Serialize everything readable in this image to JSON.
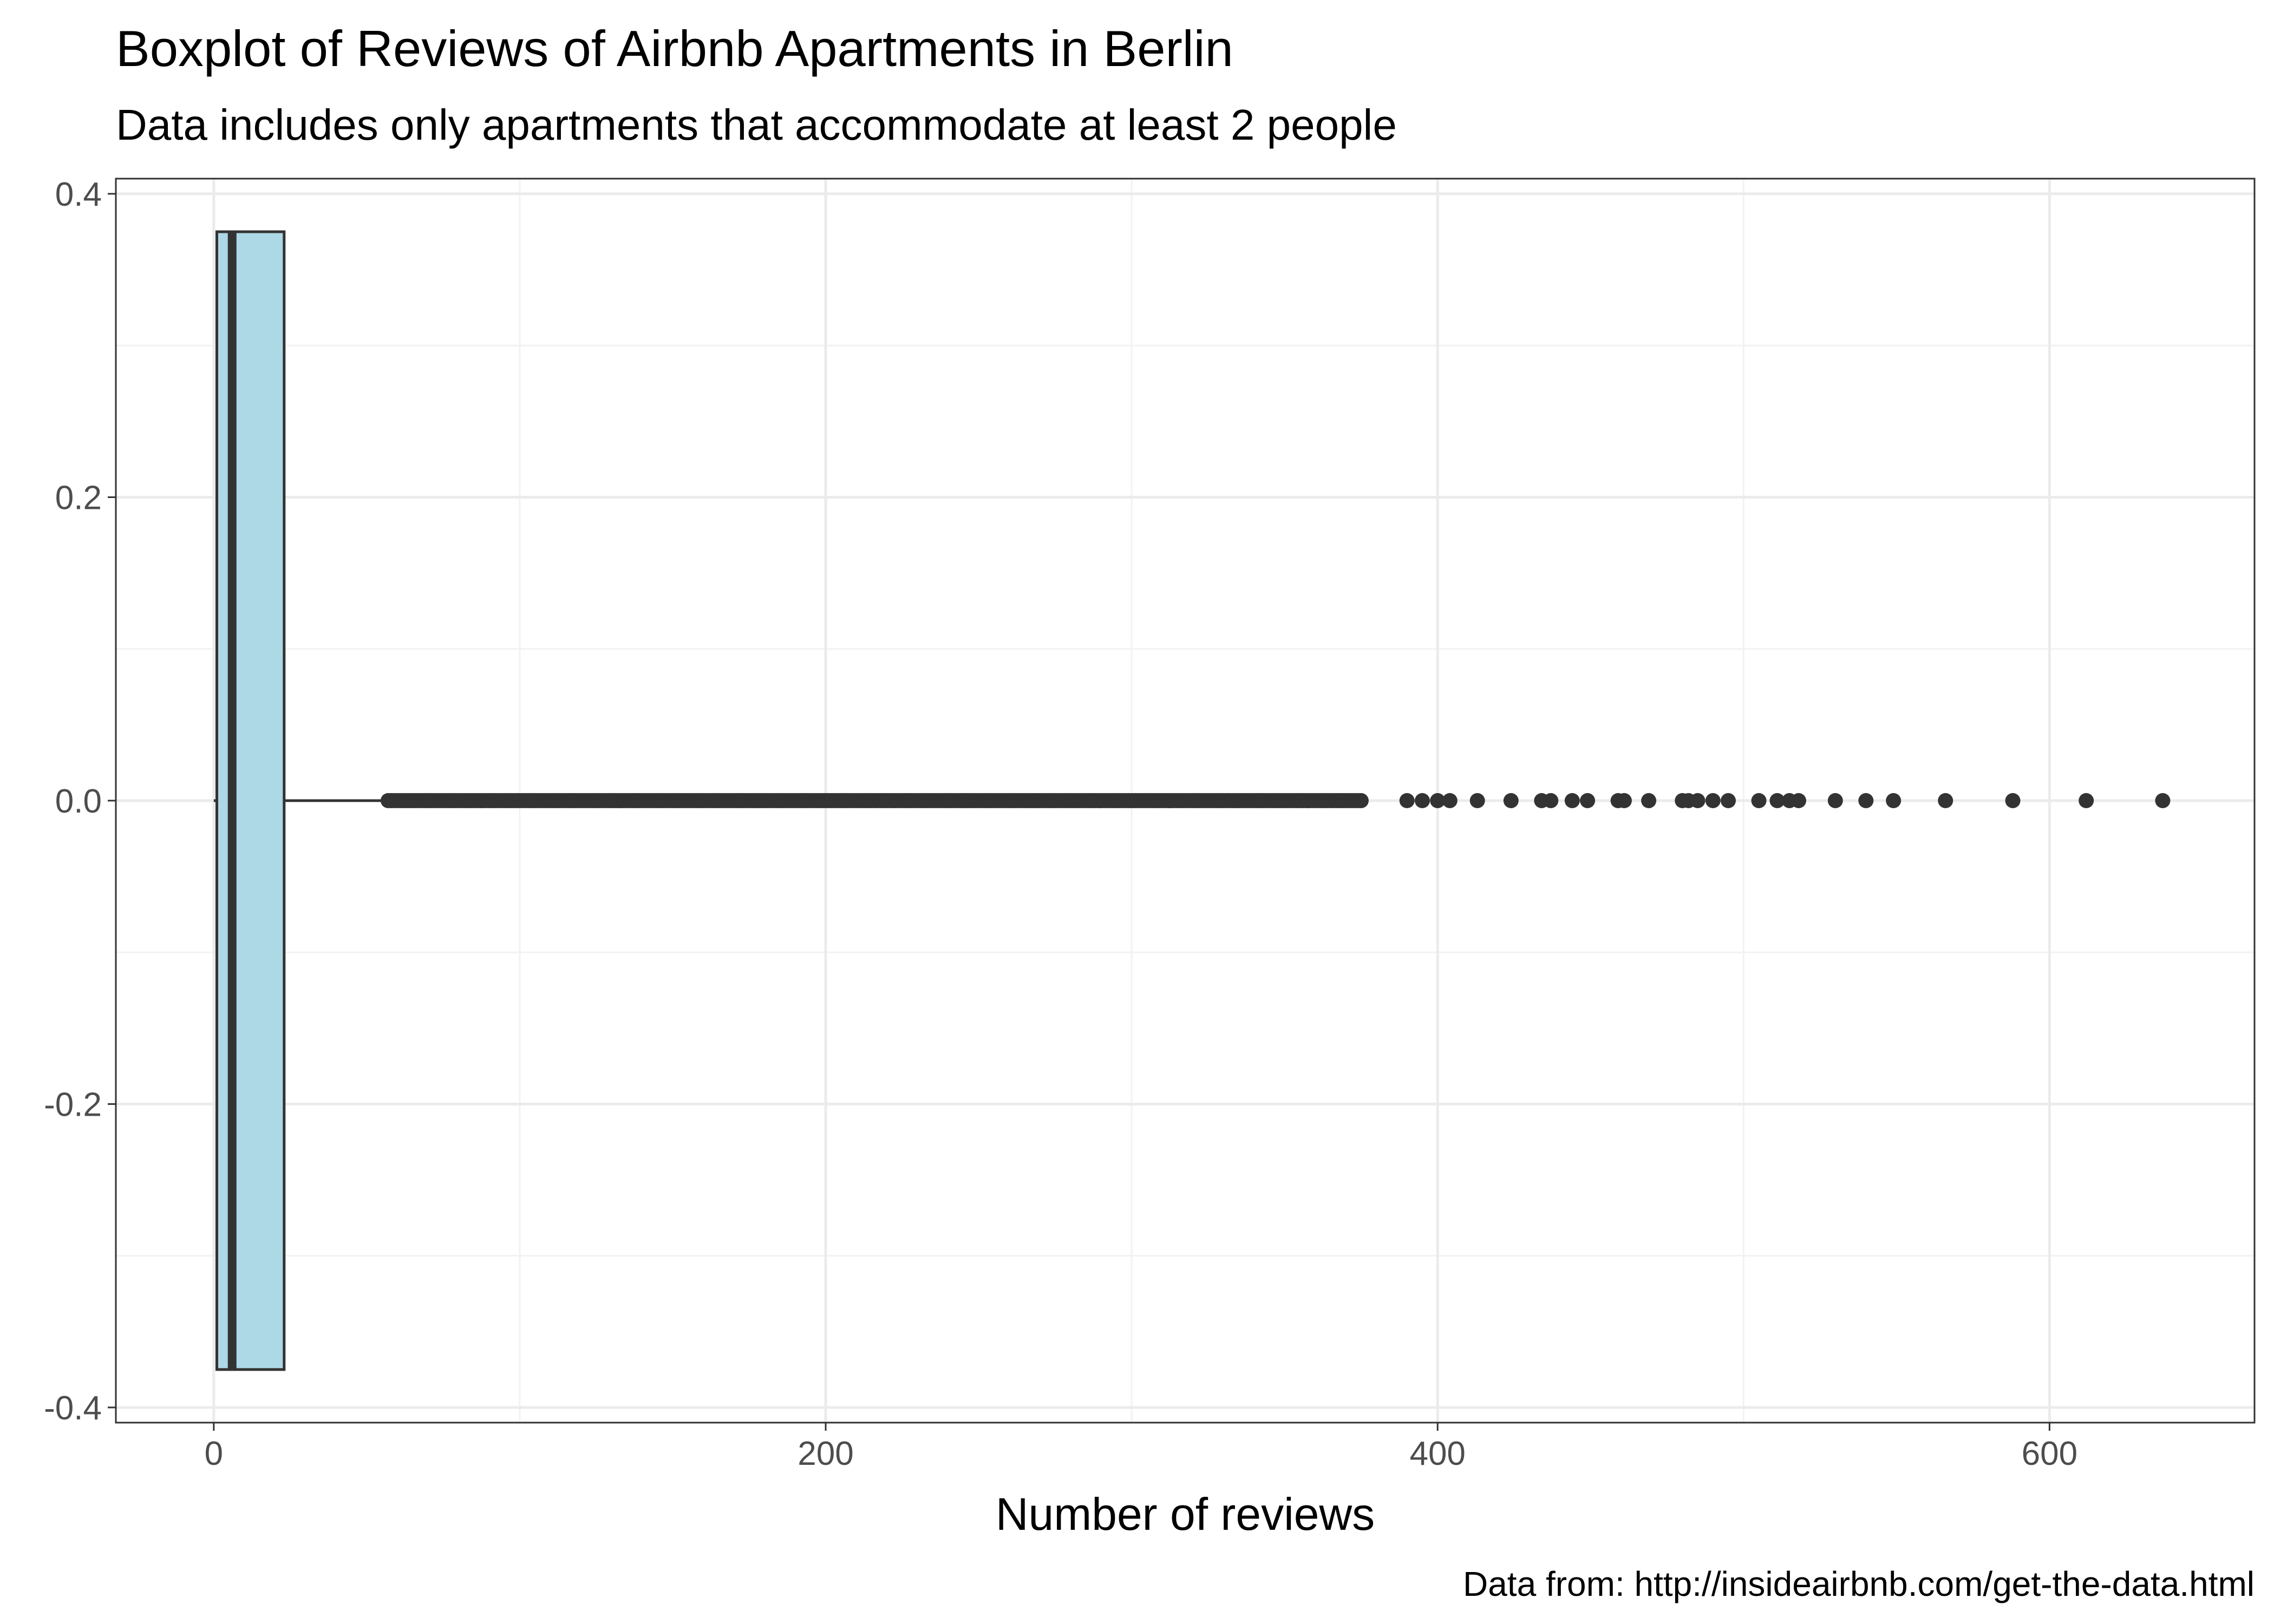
{
  "chart_data": {
    "type": "boxplot",
    "title": "Boxplot of Reviews of Airbnb Apartments in Berlin",
    "subtitle": "Data includes only apartments that accommodate at least 2 people",
    "caption": "Data from: http://insideairbnb.com/get-the-data.html",
    "xlabel": "Number of reviews",
    "ylabel": "",
    "xlim": [
      -32,
      667
    ],
    "ylim": [
      -0.41,
      0.41
    ],
    "x_ticks": [
      0,
      200,
      400,
      600
    ],
    "x_tick_labels": [
      "0",
      "200",
      "400",
      "600"
    ],
    "y_ticks": [
      0.4,
      0.2,
      0.0,
      -0.2,
      -0.4
    ],
    "y_tick_labels": [
      "0.4",
      "0.2",
      "0.0",
      "-0.2",
      "-0.4"
    ],
    "grid": true,
    "box": {
      "min": 0,
      "q1": 1,
      "median": 6,
      "q3": 23,
      "whisker_low": 0,
      "whisker_high": 56,
      "half_width": 0.375,
      "fill": "#add8e6",
      "stroke": "#333333"
    },
    "outlier_dense_range": [
      57,
      375
    ],
    "outliers": [
      390,
      395,
      400,
      404,
      413,
      424,
      434,
      437,
      444,
      449,
      459,
      461,
      469,
      480,
      482,
      485,
      490,
      495,
      505,
      511,
      515,
      518,
      530,
      540,
      549,
      566,
      588,
      612,
      637
    ],
    "point_color": "#333333"
  }
}
